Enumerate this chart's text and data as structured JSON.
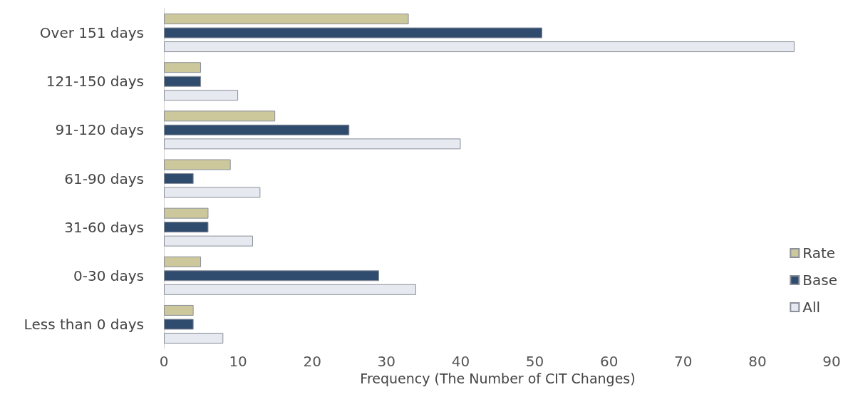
{
  "chart_data": {
    "type": "bar",
    "orientation": "horizontal",
    "xlabel": "Frequency (The Number of CIT Changes)",
    "categories": [
      "Over 151 days",
      "121-150 days",
      "91-120 days",
      "61-90 days",
      "31-60 days",
      "0-30 days",
      "Less than 0 days"
    ],
    "series": [
      {
        "name": "Rate",
        "color": "#cdc79c",
        "values": [
          33,
          5,
          15,
          9,
          6,
          5,
          4
        ]
      },
      {
        "name": "Base",
        "color": "#2f4b6e",
        "values": [
          51,
          5,
          25,
          4,
          6,
          29,
          4
        ]
      },
      {
        "name": "All",
        "color": "#e6eaf0",
        "values": [
          85,
          10,
          40,
          13,
          12,
          34,
          8
        ]
      }
    ],
    "xlim": [
      0,
      90
    ],
    "xticks": [
      0,
      10,
      20,
      30,
      40,
      50,
      60,
      70,
      80,
      90
    ],
    "grid": false,
    "legend": "right"
  }
}
